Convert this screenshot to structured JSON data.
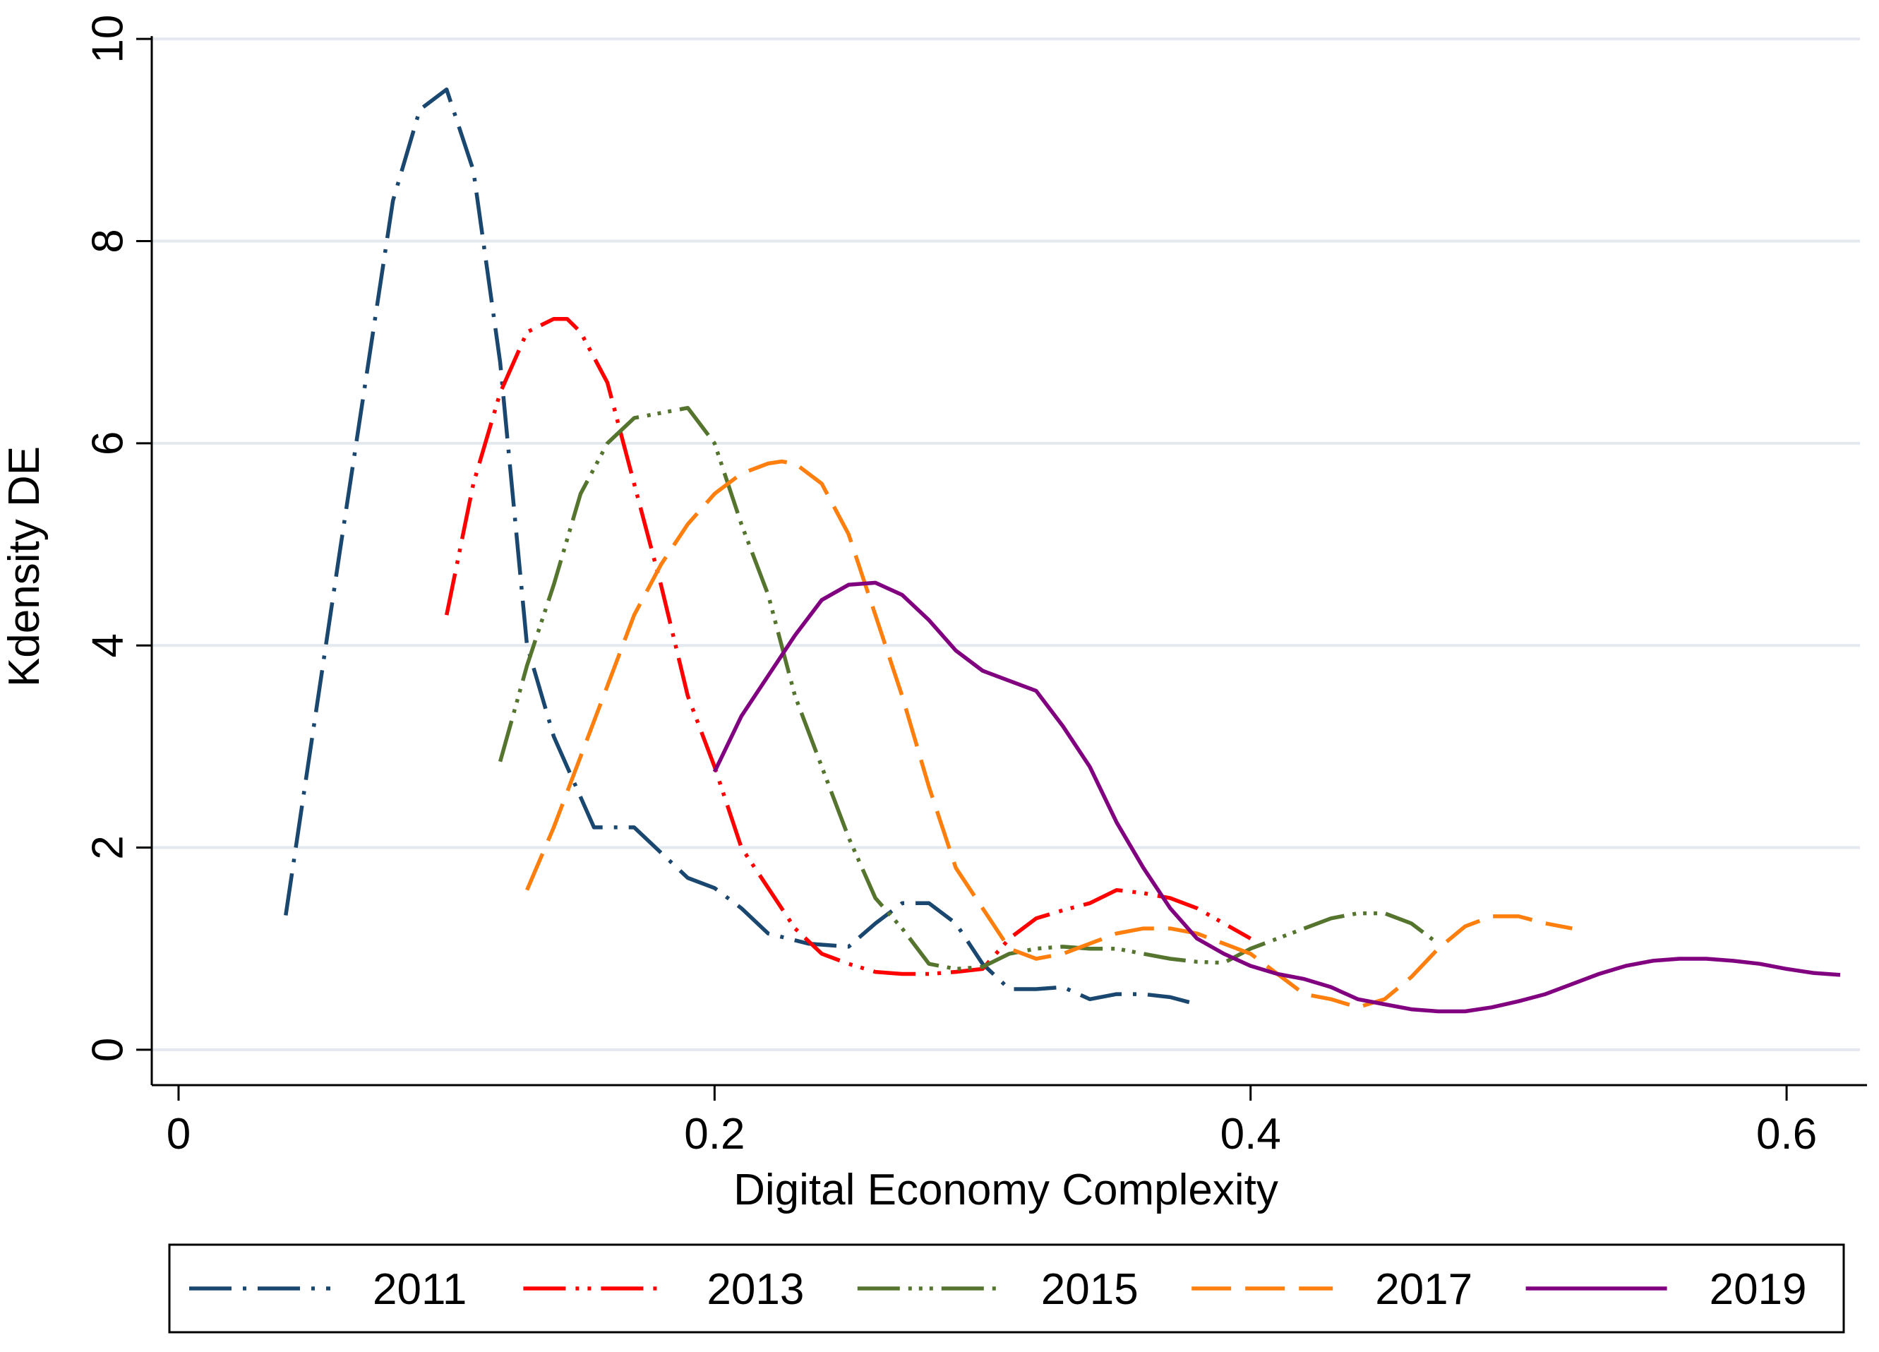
{
  "chart_data": {
    "type": "line",
    "title": "",
    "xlabel": "Digital Economy Complexity",
    "ylabel": "Kdensity DE",
    "xlim": [
      -0.01,
      0.63
    ],
    "ylim": [
      -0.35,
      10.05
    ],
    "xticks": [
      0,
      0.2,
      0.4,
      0.6
    ],
    "xtick_labels": [
      "0",
      "0.2",
      "0.4",
      "0.6"
    ],
    "yticks": [
      0,
      2,
      4,
      6,
      8,
      10
    ],
    "ytick_labels": [
      "0",
      "2",
      "4",
      "6",
      "8",
      "10"
    ],
    "grid": "horizontal",
    "legend_position": "bottom",
    "series": [
      {
        "name": "2011",
        "color": "#1a476f",
        "dash": "long-dash-dot",
        "x": [
          0.04,
          0.06,
          0.08,
          0.09,
          0.1,
          0.11,
          0.12,
          0.13,
          0.14,
          0.155,
          0.16,
          0.17,
          0.18,
          0.19,
          0.2,
          0.21,
          0.22,
          0.235,
          0.25,
          0.26,
          0.27,
          0.28,
          0.29,
          0.3,
          0.31,
          0.32,
          0.33,
          0.34,
          0.35,
          0.36,
          0.37,
          0.38
        ],
        "y": [
          1.33,
          4.9,
          8.4,
          9.3,
          9.5,
          8.7,
          6.8,
          4.0,
          3.1,
          2.2,
          2.2,
          2.2,
          1.95,
          1.7,
          1.6,
          1.4,
          1.15,
          1.05,
          1.02,
          1.25,
          1.45,
          1.45,
          1.25,
          0.85,
          0.6,
          0.6,
          0.62,
          0.5,
          0.55,
          0.55,
          0.52,
          0.45
        ]
      },
      {
        "name": "2013",
        "color": "#ff0000",
        "dash": "long-dash-dot-dot",
        "x": [
          0.1,
          0.11,
          0.12,
          0.13,
          0.14,
          0.145,
          0.15,
          0.16,
          0.17,
          0.18,
          0.19,
          0.2,
          0.21,
          0.22,
          0.23,
          0.24,
          0.25,
          0.26,
          0.27,
          0.28,
          0.29,
          0.3,
          0.31,
          0.32,
          0.33,
          0.34,
          0.35,
          0.36,
          0.37,
          0.38,
          0.39,
          0.4
        ],
        "y": [
          4.3,
          5.6,
          6.5,
          7.1,
          7.23,
          7.23,
          7.1,
          6.6,
          5.6,
          4.6,
          3.5,
          2.8,
          2.0,
          1.6,
          1.2,
          0.95,
          0.85,
          0.77,
          0.75,
          0.75,
          0.77,
          0.8,
          1.1,
          1.3,
          1.38,
          1.45,
          1.58,
          1.55,
          1.5,
          1.4,
          1.25,
          1.1
        ]
      },
      {
        "name": "2015",
        "color": "#55752f",
        "dash": "long-dash-dot-dot-dot",
        "x": [
          0.12,
          0.13,
          0.14,
          0.15,
          0.16,
          0.17,
          0.18,
          0.19,
          0.2,
          0.21,
          0.22,
          0.23,
          0.24,
          0.25,
          0.26,
          0.27,
          0.28,
          0.29,
          0.3,
          0.31,
          0.32,
          0.33,
          0.34,
          0.35,
          0.36,
          0.37,
          0.38,
          0.39,
          0.4,
          0.41,
          0.42,
          0.43,
          0.44,
          0.45,
          0.46,
          0.47
        ],
        "y": [
          2.85,
          3.8,
          4.6,
          5.5,
          6.0,
          6.25,
          6.3,
          6.35,
          6.0,
          5.2,
          4.5,
          3.5,
          2.8,
          2.1,
          1.5,
          1.2,
          0.85,
          0.8,
          0.82,
          0.95,
          1.0,
          1.02,
          1.0,
          1.0,
          0.95,
          0.9,
          0.87,
          0.86,
          1.0,
          1.1,
          1.2,
          1.3,
          1.35,
          1.35,
          1.25,
          1.05
        ]
      },
      {
        "name": "2017",
        "color": "#ff7f0e",
        "dash": "long-dash",
        "x": [
          0.13,
          0.14,
          0.15,
          0.16,
          0.17,
          0.18,
          0.19,
          0.2,
          0.21,
          0.22,
          0.225,
          0.23,
          0.24,
          0.25,
          0.26,
          0.27,
          0.28,
          0.29,
          0.3,
          0.31,
          0.32,
          0.33,
          0.34,
          0.35,
          0.36,
          0.37,
          0.38,
          0.39,
          0.4,
          0.41,
          0.42,
          0.43,
          0.44,
          0.45,
          0.46,
          0.47,
          0.48,
          0.49,
          0.5,
          0.51,
          0.52
        ],
        "y": [
          1.58,
          2.2,
          2.9,
          3.6,
          4.3,
          4.8,
          5.2,
          5.5,
          5.7,
          5.8,
          5.82,
          5.8,
          5.6,
          5.1,
          4.3,
          3.5,
          2.6,
          1.8,
          1.4,
          1.0,
          0.9,
          0.95,
          1.05,
          1.15,
          1.2,
          1.2,
          1.15,
          1.05,
          0.95,
          0.75,
          0.55,
          0.5,
          0.42,
          0.5,
          0.72,
          1.0,
          1.22,
          1.32,
          1.32,
          1.25,
          1.2
        ]
      },
      {
        "name": "2019",
        "color": "#800080",
        "dash": "solid",
        "x": [
          0.2,
          0.21,
          0.22,
          0.23,
          0.24,
          0.25,
          0.26,
          0.27,
          0.28,
          0.29,
          0.3,
          0.31,
          0.32,
          0.33,
          0.34,
          0.35,
          0.36,
          0.37,
          0.38,
          0.39,
          0.4,
          0.41,
          0.42,
          0.43,
          0.44,
          0.45,
          0.46,
          0.47,
          0.48,
          0.49,
          0.5,
          0.51,
          0.52,
          0.53,
          0.54,
          0.55,
          0.56,
          0.57,
          0.58,
          0.59,
          0.6,
          0.61,
          0.62
        ],
        "y": [
          2.75,
          3.3,
          3.7,
          4.1,
          4.45,
          4.6,
          4.62,
          4.5,
          4.25,
          3.95,
          3.75,
          3.65,
          3.55,
          3.2,
          2.8,
          2.25,
          1.8,
          1.4,
          1.1,
          0.95,
          0.83,
          0.75,
          0.7,
          0.62,
          0.5,
          0.45,
          0.4,
          0.38,
          0.38,
          0.42,
          0.48,
          0.55,
          0.65,
          0.75,
          0.83,
          0.88,
          0.9,
          0.9,
          0.88,
          0.85,
          0.8,
          0.76,
          0.74
        ]
      }
    ]
  }
}
